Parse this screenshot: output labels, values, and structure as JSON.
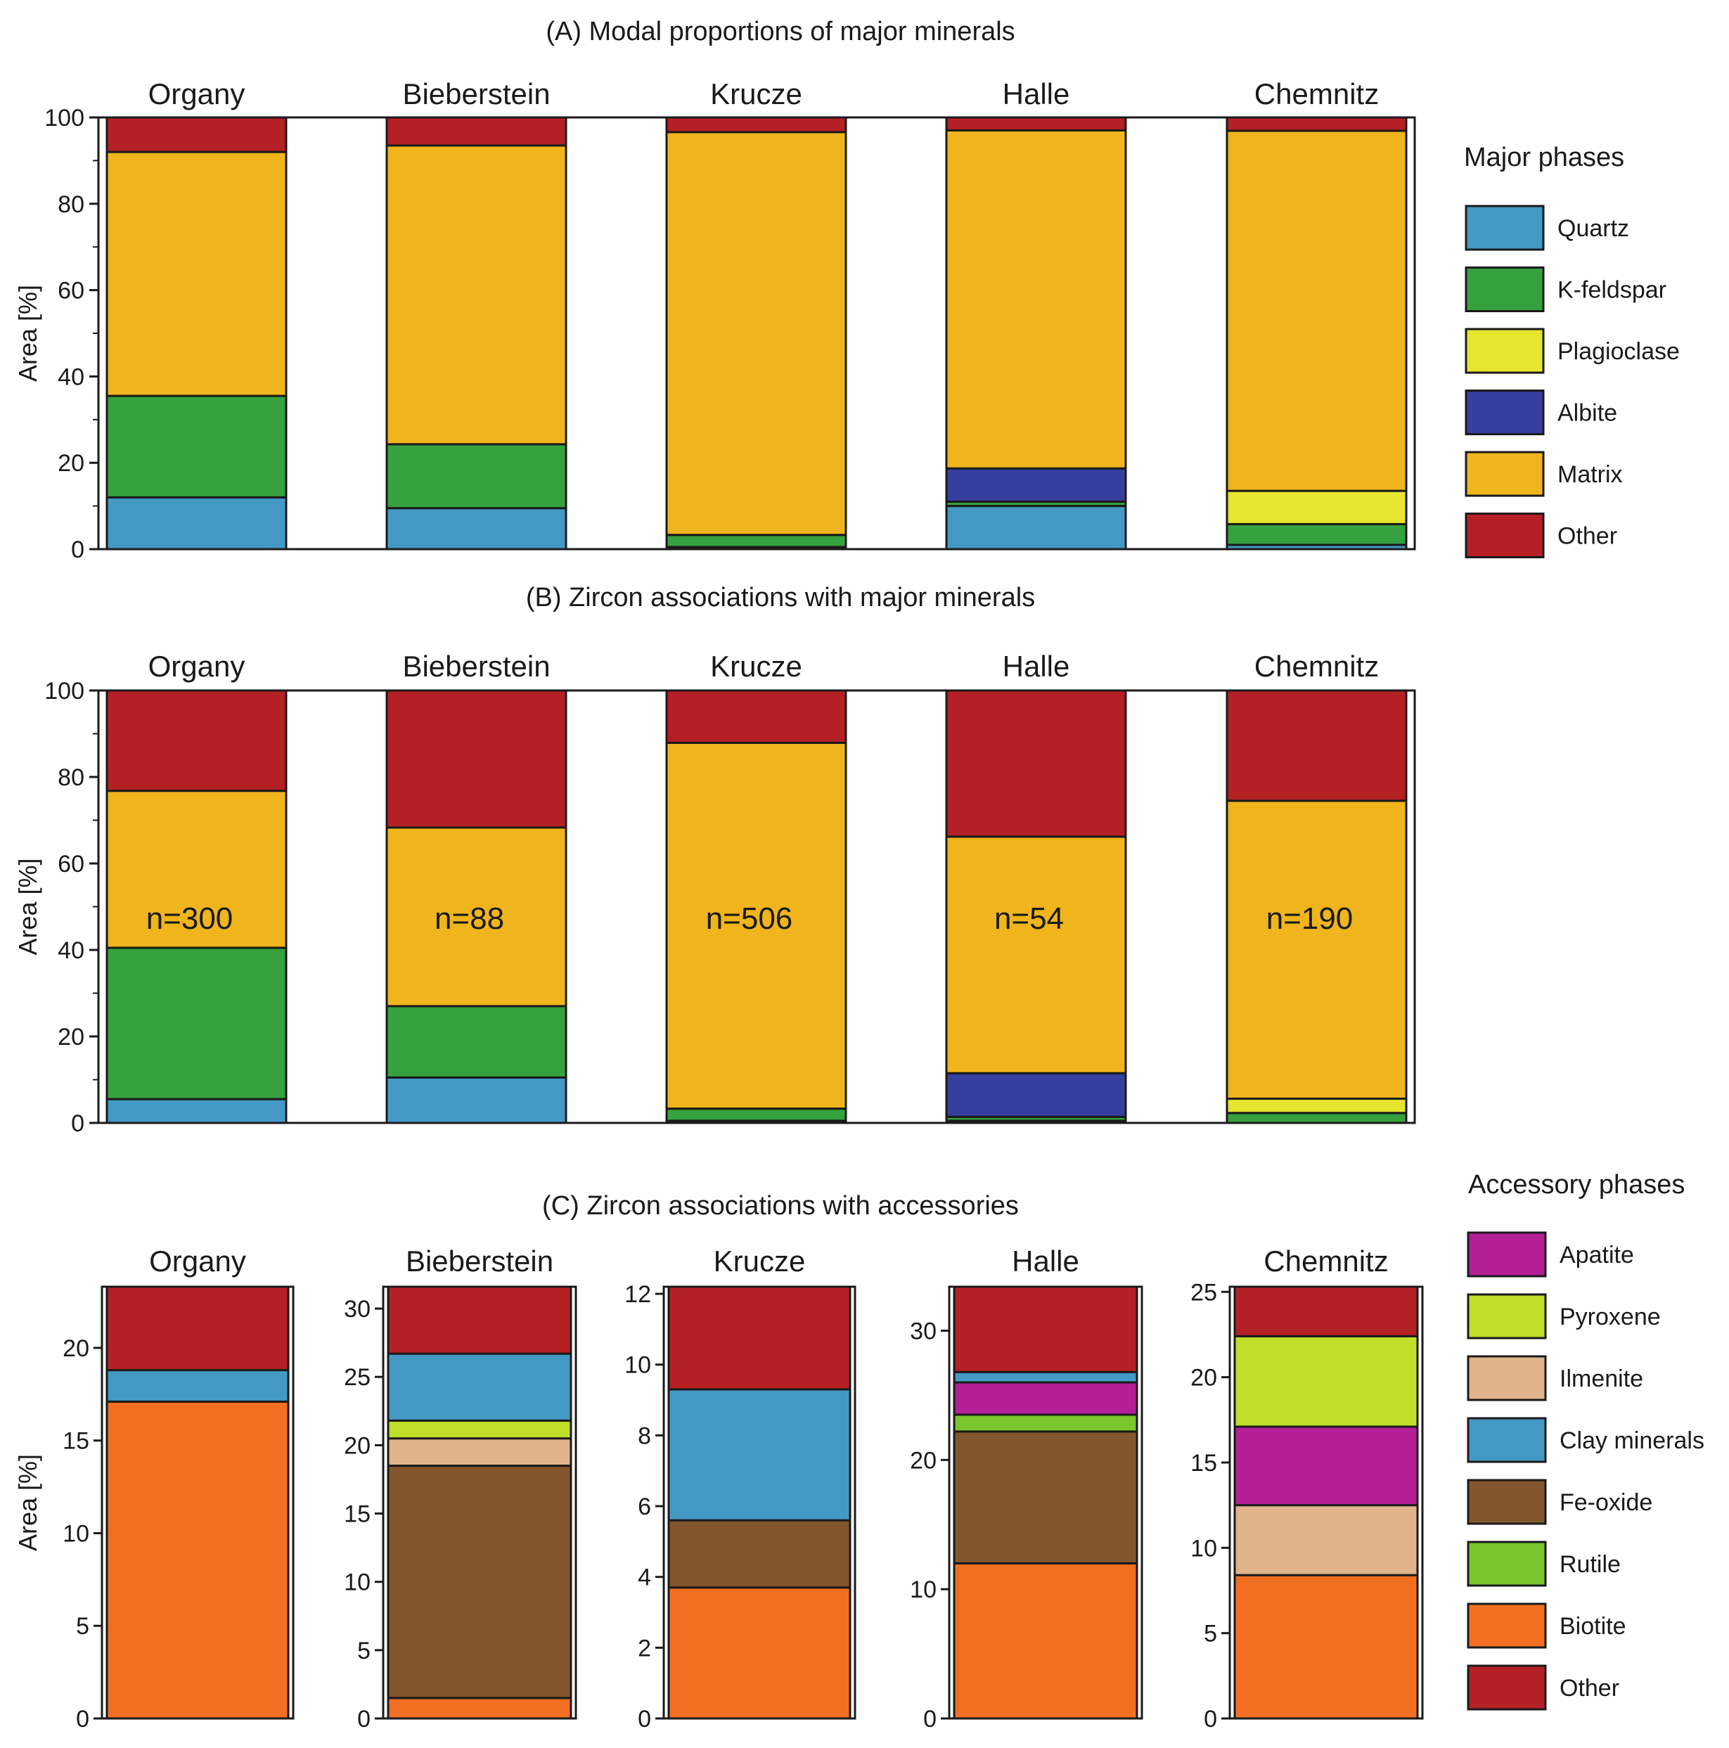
{
  "colors": {
    "Quartz": "#4499c4",
    "K-feldspar": "#36a13f",
    "Plagioclase": "#e6e62e",
    "Albite": "#373f9e",
    "Matrix": "#f0b51c",
    "Other": "#b52025",
    "Apatite": "#b41f98",
    "Pyroxene": "#bfdf29",
    "Ilmenite": "#e1b38a",
    "Clay minerals": "#4499c4",
    "Fe-oxide": "#83562d",
    "Rutile": "#7ac62c",
    "Biotite": "#f26f21"
  },
  "legend_major": {
    "title": "Major phases",
    "items": [
      "Quartz",
      "K-feldspar",
      "Plagioclase",
      "Albite",
      "Matrix",
      "Other"
    ]
  },
  "legend_accessory": {
    "title": "Accessory phases",
    "items": [
      "Apatite",
      "Pyroxene",
      "Ilmenite",
      "Clay minerals",
      "Fe-oxide",
      "Rutile",
      "Biotite",
      "Other"
    ]
  },
  "chart_data": [
    {
      "type": "bar",
      "stacked": true,
      "title": "(A) Modal proportions of major minerals",
      "ylabel": "Area [%]",
      "ylim": [
        0,
        100
      ],
      "yticks": [
        "0",
        "20",
        "40",
        "60",
        "80",
        "100"
      ],
      "categories": [
        "Organy",
        "Bieberstein",
        "Krucze",
        "Halle",
        "Chemnitz"
      ],
      "series": [
        {
          "name": "Quartz",
          "values": [
            12,
            9.5,
            0.5,
            10,
            1
          ]
        },
        {
          "name": "K-feldspar",
          "values": [
            23.5,
            14.8,
            2.8,
            1,
            4.8
          ]
        },
        {
          "name": "Plagioclase",
          "values": [
            0,
            0,
            0,
            0,
            7.7
          ]
        },
        {
          "name": "Albite",
          "values": [
            0,
            0,
            0,
            7.7,
            0
          ]
        },
        {
          "name": "Matrix",
          "values": [
            56.5,
            69.2,
            93.3,
            78.3,
            83.4
          ]
        },
        {
          "name": "Other",
          "values": [
            8,
            6.5,
            3.4,
            3,
            3.1
          ]
        }
      ]
    },
    {
      "type": "bar",
      "stacked": true,
      "title": "(B) Zircon associations with major minerals",
      "ylabel": "Area [%]",
      "ylim": [
        0,
        100
      ],
      "yticks": [
        "0",
        "20",
        "40",
        "60",
        "80",
        "100"
      ],
      "categories": [
        "Organy",
        "Bieberstein",
        "Krucze",
        "Halle",
        "Chemnitz"
      ],
      "annotations": [
        "n=300",
        "n=88",
        "n=506",
        "n=54",
        "n=190"
      ],
      "series": [
        {
          "name": "Quartz",
          "values": [
            5.5,
            10.5,
            0.5,
            0.5,
            0
          ]
        },
        {
          "name": "K-feldspar",
          "values": [
            35,
            16.5,
            2.8,
            0.9,
            2.3
          ]
        },
        {
          "name": "Plagioclase",
          "values": [
            0,
            0,
            0,
            0,
            3.3
          ]
        },
        {
          "name": "Albite",
          "values": [
            0,
            0,
            0,
            10.1,
            0
          ]
        },
        {
          "name": "Matrix",
          "values": [
            36.3,
            41.3,
            84.6,
            54.7,
            68.9
          ]
        },
        {
          "name": "Other",
          "values": [
            23.2,
            31.7,
            12.1,
            33.8,
            25.5
          ]
        }
      ]
    },
    {
      "type": "bar",
      "stacked": true,
      "title": "(C) Zircon associations with accessories",
      "ylabel": "Area [%]",
      "panels": [
        {
          "category": "Organy",
          "ylim": [
            0,
            23.3
          ],
          "yticks": [
            "0",
            "5",
            "10",
            "15",
            "20"
          ],
          "segments": [
            {
              "name": "Biotite",
              "value": 17.1
            },
            {
              "name": "Clay minerals",
              "value": 1.7
            },
            {
              "name": "Other",
              "value": 4.5
            }
          ]
        },
        {
          "category": "Bieberstein",
          "ylim": [
            0,
            31.6
          ],
          "yticks": [
            "0",
            "5",
            "10",
            "15",
            "20",
            "25",
            "30"
          ],
          "segments": [
            {
              "name": "Biotite",
              "value": 1.5
            },
            {
              "name": "Fe-oxide",
              "value": 17
            },
            {
              "name": "Ilmenite",
              "value": 2
            },
            {
              "name": "Pyroxene",
              "value": 1.3
            },
            {
              "name": "Clay minerals",
              "value": 4.9
            },
            {
              "name": "Other",
              "value": 4.9
            }
          ]
        },
        {
          "category": "Krucze",
          "ylim": [
            0,
            12.2
          ],
          "yticks": [
            "0",
            "2",
            "4",
            "6",
            "8",
            "10",
            "12"
          ],
          "segments": [
            {
              "name": "Biotite",
              "value": 3.7
            },
            {
              "name": "Fe-oxide",
              "value": 1.9
            },
            {
              "name": "Clay minerals",
              "value": 3.7
            },
            {
              "name": "Other",
              "value": 2.9
            }
          ]
        },
        {
          "category": "Halle",
          "ylim": [
            0,
            33.4
          ],
          "yticks": [
            "0",
            "10",
            "20",
            "30"
          ],
          "segments": [
            {
              "name": "Biotite",
              "value": 12
            },
            {
              "name": "Fe-oxide",
              "value": 10.2
            },
            {
              "name": "Rutile",
              "value": 1.3
            },
            {
              "name": "Apatite",
              "value": 2.5
            },
            {
              "name": "Clay minerals",
              "value": 0.8
            },
            {
              "name": "Other",
              "value": 6.6
            }
          ]
        },
        {
          "category": "Chemnitz",
          "ylim": [
            0,
            25.3
          ],
          "yticks": [
            "0",
            "5",
            "10",
            "15",
            "20",
            "25"
          ],
          "segments": [
            {
              "name": "Biotite",
              "value": 8.4
            },
            {
              "name": "Ilmenite",
              "value": 4.1
            },
            {
              "name": "Apatite",
              "value": 4.6
            },
            {
              "name": "Pyroxene",
              "value": 5.3
            },
            {
              "name": "Other",
              "value": 2.9
            }
          ]
        }
      ]
    }
  ]
}
